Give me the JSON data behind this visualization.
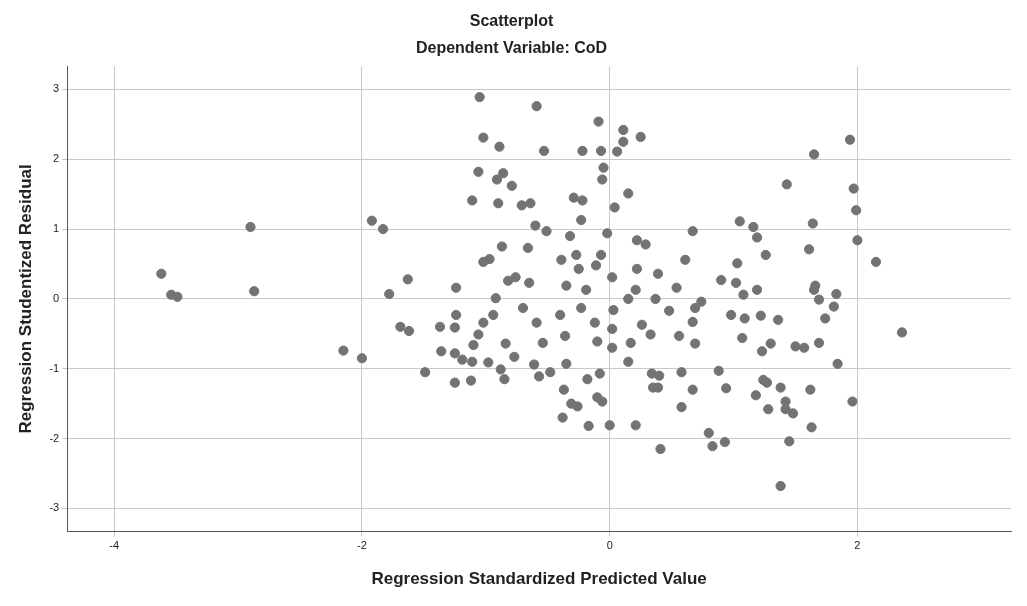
{
  "chart_data": {
    "type": "scatter",
    "title": "Scatterplot",
    "subtitle": "Dependent Variable: CoD",
    "xlabel": "Regression Standardized Predicted Value",
    "ylabel": "Regression Studentized Residual",
    "xlim": [
      -4.38,
      3.24
    ],
    "ylim": [
      -3.33,
      3.33
    ],
    "xticks": [
      -4,
      -2,
      0,
      2
    ],
    "yticks": [
      -3,
      -2,
      -1,
      0,
      1,
      2,
      3
    ],
    "grid": true,
    "legend": false,
    "marker": "circle",
    "series": [
      {
        "color": "#737373",
        "x": [
          -3.62,
          -3.54,
          -3.49,
          -2.9,
          -2.87,
          -1.92,
          -1.83,
          -2.15,
          -2.0,
          -1.78,
          -1.63,
          -1.69,
          -1.62,
          -1.49,
          -1.36,
          -1.37,
          -1.25,
          -1.12,
          -1.25,
          -1.25,
          -1.24,
          -1.24,
          -1.05,
          -1.06,
          -1.02,
          -0.91,
          -0.9,
          -1.11,
          -0.79,
          -0.86,
          -0.89,
          -0.97,
          -1.02,
          -0.87,
          -0.92,
          -0.82,
          -0.76,
          -0.94,
          -1.02,
          -1.06,
          -1.1,
          -1.11,
          -1.19,
          -0.98,
          -0.88,
          -0.84,
          -0.85,
          -0.77,
          -0.71,
          -0.64,
          -0.59,
          -0.53,
          -0.51,
          -0.6,
          -0.66,
          -0.65,
          -0.7,
          -0.59,
          -0.54,
          -0.61,
          -0.57,
          -0.48,
          -0.4,
          -0.35,
          -0.39,
          -0.32,
          -0.29,
          -0.22,
          -0.22,
          -0.23,
          -0.27,
          -0.25,
          -0.19,
          -0.23,
          -0.36,
          -0.35,
          -0.37,
          -0.38,
          -0.31,
          -0.26,
          -0.18,
          -0.17,
          -0.09,
          -0.07,
          -0.06,
          -0.05,
          -0.02,
          -0.07,
          -0.11,
          -0.12,
          -0.1,
          -0.08,
          -0.1,
          -0.06,
          0.0,
          0.02,
          0.02,
          0.03,
          0.02,
          0.04,
          0.06,
          0.11,
          0.11,
          0.15,
          0.15,
          0.21,
          0.22,
          0.22,
          0.25,
          0.21,
          0.15,
          0.17,
          0.26,
          0.29,
          0.33,
          0.34,
          0.35,
          0.39,
          0.4,
          0.41,
          0.37,
          0.39,
          0.48,
          0.54,
          0.56,
          0.58,
          0.61,
          0.67,
          0.67,
          0.58,
          0.67,
          0.69,
          0.69,
          0.74,
          0.8,
          0.93,
          0.94,
          0.9,
          0.88,
          0.98,
          1.02,
          1.03,
          1.05,
          1.16,
          1.22,
          1.24,
          1.28,
          1.18,
          1.23,
          1.3,
          1.43,
          1.64,
          1.69,
          1.69,
          1.66,
          1.74,
          1.81,
          1.83,
          1.84,
          1.96,
          1.65,
          1.94,
          1.97,
          1.99,
          2.0,
          2.15,
          2.36,
          1.63,
          1.38,
          1.45,
          1.62,
          1.38,
          1.42,
          1.27,
          1.19,
          1.19,
          1.26,
          1.09,
          1.07,
          1.08,
          1.36,
          1.5,
          1.57,
          1.42,
          1.48,
          1.61,
          1.65,
          0.83
        ],
        "values": [
          0.36,
          0.06,
          0.03,
          1.03,
          0.11,
          1.12,
          1.0,
          -0.74,
          -0.85,
          0.07,
          0.28,
          -0.4,
          -0.46,
          -1.05,
          -0.75,
          -0.4,
          -0.41,
          -1.17,
          -1.2,
          -0.78,
          -0.23,
          0.16,
          2.89,
          1.82,
          2.31,
          1.71,
          1.37,
          1.41,
          1.62,
          1.8,
          2.18,
          0.57,
          0.53,
          0.75,
          0.01,
          0.26,
          0.31,
          -0.23,
          -0.34,
          -0.51,
          -0.66,
          -0.9,
          -0.87,
          -0.91,
          -1.01,
          -0.64,
          -1.15,
          -0.83,
          1.34,
          1.37,
          2.76,
          2.12,
          0.97,
          1.05,
          0.73,
          0.23,
          -0.13,
          -0.34,
          -0.63,
          -0.94,
          -1.11,
          -1.05,
          -0.23,
          0.19,
          0.56,
          0.9,
          1.45,
          2.12,
          1.41,
          1.13,
          0.63,
          0.43,
          0.13,
          -0.13,
          -0.53,
          -0.93,
          -1.3,
          -1.7,
          -1.5,
          -1.54,
          -1.15,
          -1.82,
          2.54,
          2.12,
          1.71,
          1.88,
          0.94,
          0.63,
          0.48,
          -0.34,
          -0.61,
          -1.07,
          -1.41,
          -1.47,
          -1.81,
          -0.7,
          -0.43,
          -0.16,
          0.31,
          1.31,
          2.11,
          2.42,
          2.25,
          1.51,
          0.0,
          0.13,
          0.43,
          0.84,
          2.32,
          -1.81,
          -0.9,
          -0.63,
          -0.37,
          0.78,
          -0.51,
          -1.07,
          -1.27,
          -1.27,
          -1.1,
          -2.15,
          0.0,
          0.36,
          -0.17,
          0.16,
          -0.53,
          -1.05,
          0.56,
          0.97,
          -0.33,
          -1.55,
          -1.3,
          -0.13,
          -0.64,
          -0.04,
          -1.92,
          -2.05,
          -1.28,
          0.27,
          -1.03,
          -0.23,
          0.23,
          0.51,
          1.11,
          1.03,
          -0.24,
          -1.16,
          -1.58,
          -1.38,
          -0.75,
          -0.64,
          1.64,
          1.08,
          -0.01,
          -0.63,
          0.19,
          -0.28,
          -0.11,
          0.07,
          -0.93,
          -1.47,
          2.07,
          2.28,
          1.58,
          1.27,
          0.84,
          0.53,
          -0.48,
          -1.84,
          -2.68,
          -2.04,
          -1.3,
          -1.27,
          -1.58,
          -1.2,
          0.13,
          0.88,
          0.63,
          -0.28,
          -0.56,
          0.06,
          -0.3,
          -0.68,
          -0.7,
          -1.47,
          -1.64,
          0.71,
          0.13,
          -2.11
        ]
      }
    ]
  }
}
